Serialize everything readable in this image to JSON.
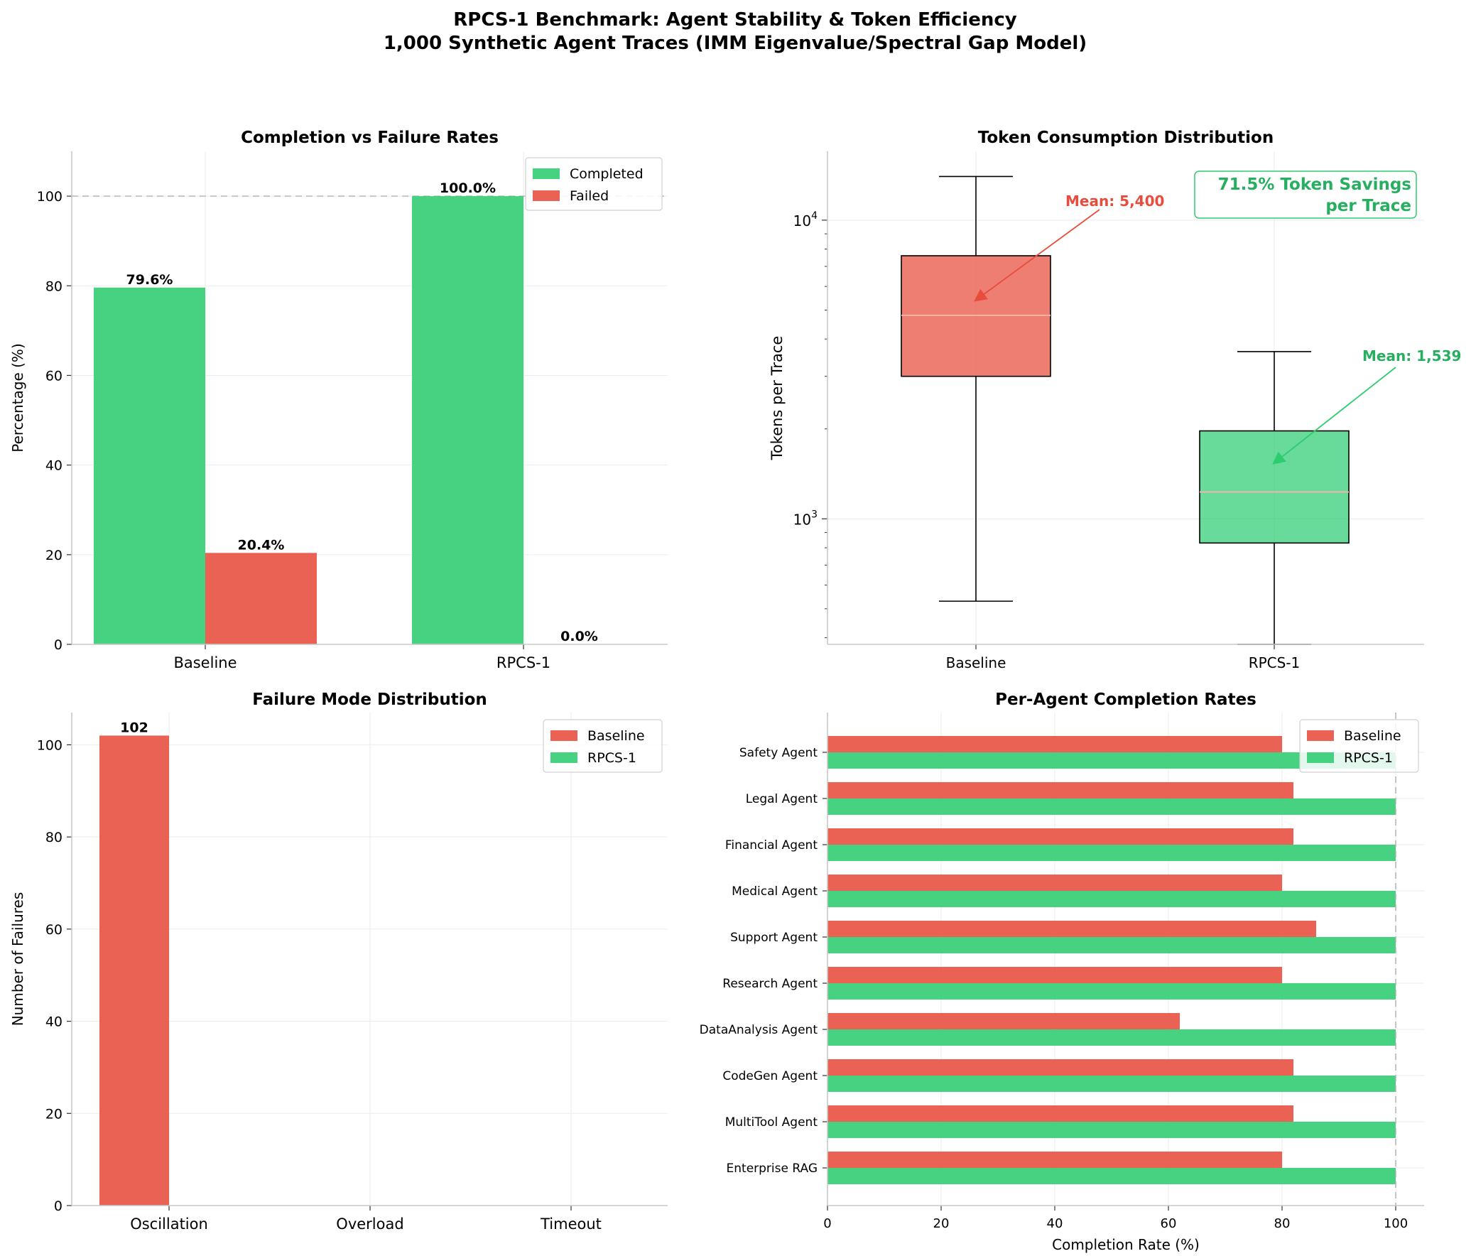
{
  "figure": {
    "title_line1": "RPCS-1 Benchmark: Agent Stability & Token Efficiency",
    "title_line2": "1,000 Synthetic Agent Traces (IMM Eigenvalue/Spectral Gap Model)"
  },
  "colors": {
    "green": "#2ecc71",
    "red": "#e74c3c",
    "green_text": "#27ae60",
    "red_text": "#e74c3c"
  },
  "chart_data": [
    {
      "type": "bar",
      "title": "Completion vs Failure Rates",
      "ylabel": "Percentage (%)",
      "categories": [
        "Baseline",
        "RPCS-1"
      ],
      "series": [
        {
          "name": "Completed",
          "values": [
            79.6,
            100.0
          ],
          "labels": [
            "79.6%",
            "100.0%"
          ]
        },
        {
          "name": "Failed",
          "values": [
            20.4,
            0.0
          ],
          "labels": [
            "20.4%",
            "0.0%"
          ]
        }
      ],
      "ylim": [
        0,
        110
      ],
      "yticks": [
        0,
        20,
        40,
        60,
        80,
        100
      ],
      "reference_line": 100,
      "legend": "top-right",
      "grid": true
    },
    {
      "type": "box",
      "title": "Token Consumption Distribution",
      "ylabel": "Tokens per Trace",
      "yscale": "log",
      "ylim": [
        380,
        17000
      ],
      "ytick_labels": [
        {
          "value": 1000,
          "base": "10",
          "exp": "3"
        },
        {
          "value": 10000,
          "base": "10",
          "exp": "4"
        }
      ],
      "categories": [
        "Baseline",
        "RPCS-1"
      ],
      "boxes": [
        {
          "whisker_low": 530,
          "q1": 3000,
          "median": 4800,
          "q3": 7600,
          "whisker_high": 14000,
          "mean": 5400,
          "mean_label": "Mean: 5,400"
        },
        {
          "whisker_low": 380,
          "q1": 830,
          "median": 1230,
          "q3": 1970,
          "whisker_high": 3630,
          "mean": 1539,
          "mean_label": "Mean: 1,539"
        }
      ],
      "annotation_line1": "71.5% Token Savings",
      "annotation_line2": "per Trace",
      "grid": true
    },
    {
      "type": "bar",
      "title": "Failure Mode Distribution",
      "ylabel": "Number of Failures",
      "categories": [
        "Oscillation",
        "Overload",
        "Timeout"
      ],
      "series": [
        {
          "name": "Baseline",
          "values": [
            102,
            0,
            0
          ],
          "labels": [
            "102",
            "",
            ""
          ]
        },
        {
          "name": "RPCS-1",
          "values": [
            0,
            0,
            0
          ]
        }
      ],
      "ylim": [
        0,
        107
      ],
      "yticks": [
        0,
        20,
        40,
        60,
        80,
        100
      ],
      "legend": "top-right",
      "grid": true
    },
    {
      "type": "bar",
      "orientation": "horizontal",
      "title": "Per-Agent Completion Rates",
      "xlabel": "Completion Rate (%)",
      "categories": [
        "Safety Agent",
        "Legal Agent",
        "Financial Agent",
        "Medical Agent",
        "Support Agent",
        "Research Agent",
        "DataAnalysis Agent",
        "CodeGen Agent",
        "MultiTool Agent",
        "Enterprise RAG"
      ],
      "series": [
        {
          "name": "Baseline",
          "values": [
            80,
            82,
            82,
            80,
            86,
            80,
            62,
            82,
            82,
            80
          ]
        },
        {
          "name": "RPCS-1",
          "values": [
            100,
            100,
            100,
            100,
            100,
            100,
            100,
            100,
            100,
            100
          ]
        }
      ],
      "xlim": [
        0,
        105
      ],
      "xticks": [
        0,
        20,
        40,
        60,
        80,
        100
      ],
      "reference_line": 100,
      "legend": "top-right",
      "grid": true
    }
  ]
}
